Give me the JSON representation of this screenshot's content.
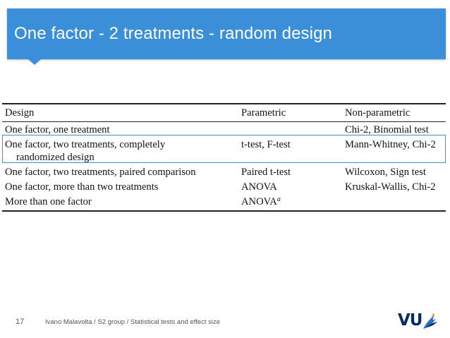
{
  "slide": {
    "title": "One factor - 2 treatments - random design",
    "page_number": "17",
    "footer": "Ivano Malavolta / S2 group / Statistical tests and effect size",
    "logo_text": "VU",
    "accent_color": "#3a8fd8"
  },
  "table": {
    "headers": [
      "Design",
      "Parametric",
      "Non-parametric"
    ],
    "rows": [
      {
        "design": "One factor, one treatment",
        "design_cont": "",
        "parametric": "",
        "parametric_sup": "",
        "nonparametric": "Chi-2, Binomial test"
      },
      {
        "design": "One factor, two treatments, completely",
        "design_cont": "randomized design",
        "parametric": "t-test, F-test",
        "parametric_sup": "",
        "nonparametric": "Mann-Whitney, Chi-2"
      },
      {
        "design": "One factor, two treatments, paired comparison",
        "design_cont": "",
        "parametric": "Paired t-test",
        "parametric_sup": "",
        "nonparametric": "Wilcoxon, Sign test"
      },
      {
        "design": "One factor, more than two treatments",
        "design_cont": "",
        "parametric": "ANOVA",
        "parametric_sup": "",
        "nonparametric": "Kruskal-Wallis, Chi-2"
      },
      {
        "design": "More than one factor",
        "design_cont": "",
        "parametric": "ANOVA",
        "parametric_sup": "a",
        "nonparametric": ""
      }
    ],
    "highlighted_row": 1
  }
}
